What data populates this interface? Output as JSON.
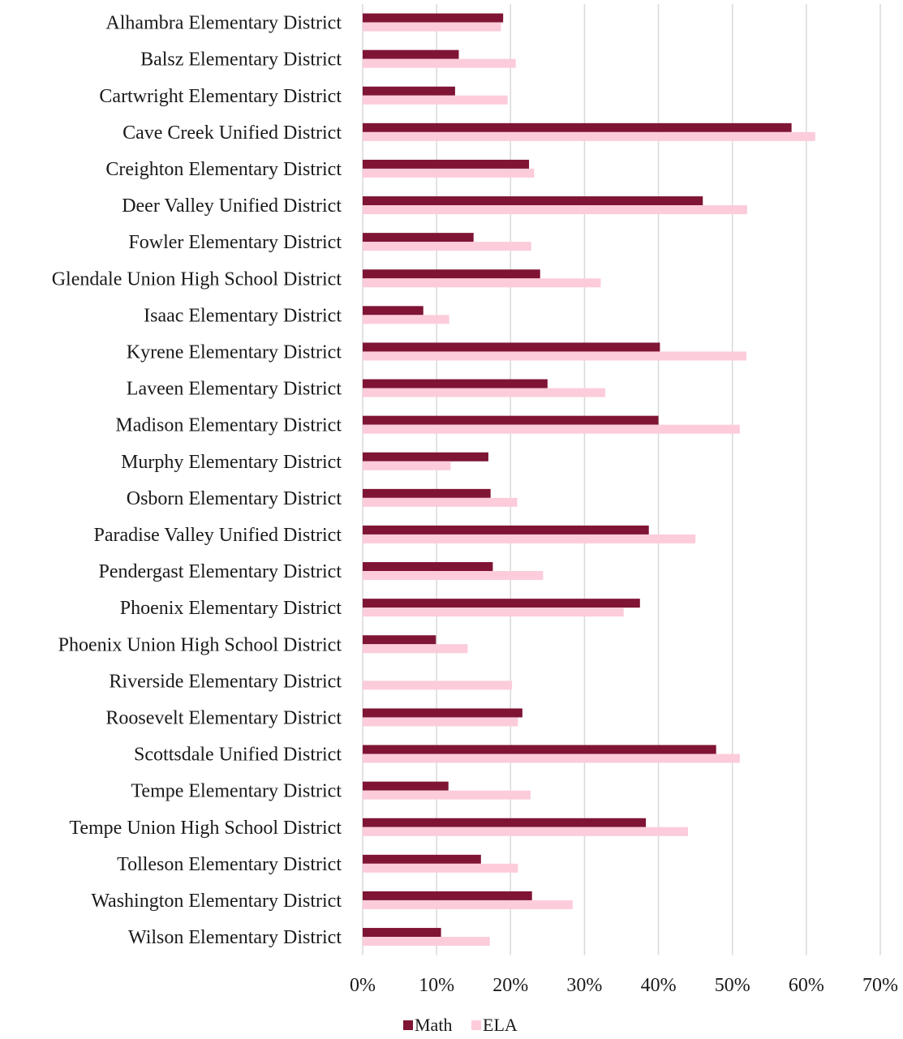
{
  "colors": {
    "math": "#7f1434",
    "ela": "#fcccdb",
    "grid": "#d9d9d9"
  },
  "chart_data": {
    "type": "bar",
    "orientation": "horizontal",
    "title": "",
    "xlabel": "",
    "ylabel": "",
    "xlim": [
      0,
      70
    ],
    "value_format": "percent",
    "ticks": [
      "0%",
      "10%",
      "20%",
      "30%",
      "40%",
      "50%",
      "60%",
      "70%"
    ],
    "grid": true,
    "legend_position": "bottom",
    "categories": [
      "Alhambra Elementary District",
      "Balsz Elementary District",
      "Cartwright Elementary District",
      "Cave Creek Unified District",
      "Creighton Elementary District",
      "Deer Valley Unified District",
      "Fowler Elementary District",
      "Glendale Union High School District",
      "Isaac Elementary District",
      "Kyrene Elementary District",
      "Laveen Elementary District",
      "Madison Elementary District",
      "Murphy Elementary District",
      "Osborn Elementary District",
      "Paradise Valley Unified District",
      "Pendergast Elementary District",
      "Phoenix Elementary District",
      "Phoenix Union High School District",
      "Riverside Elementary District",
      "Roosevelt Elementary District",
      "Scottsdale Unified District",
      "Tempe Elementary District",
      "Tempe Union High School District",
      "Tolleson Elementary District",
      "Washington Elementary District",
      "Wilson Elementary District"
    ],
    "series": [
      {
        "name": "Math",
        "color": "#7f1434",
        "values": [
          19,
          13,
          12.5,
          58,
          22.5,
          46,
          15,
          24,
          8.2,
          40.2,
          25,
          40,
          17,
          17.3,
          38.7,
          17.6,
          37.5,
          9.9,
          0,
          21.6,
          47.8,
          11.6,
          38.3,
          16,
          22.9,
          10.6
        ]
      },
      {
        "name": "ELA",
        "color": "#fcccdb",
        "values": [
          18.7,
          20.7,
          19.6,
          61.2,
          23.2,
          52,
          22.8,
          32.2,
          11.7,
          51.9,
          32.8,
          51,
          11.9,
          20.9,
          45,
          24.4,
          35.3,
          14.2,
          20.2,
          21,
          51,
          22.7,
          44,
          21,
          28.4,
          17.2
        ]
      }
    ]
  }
}
